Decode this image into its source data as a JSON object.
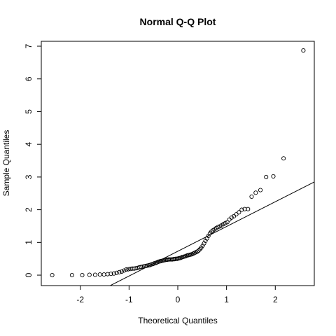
{
  "chart_data": {
    "type": "scatter",
    "title": "Normal Q-Q Plot",
    "x_label": "Theoretical Quantiles",
    "y_label": "Sample Quantiles",
    "x": [
      -2.576,
      -2.17,
      -1.96,
      -1.812,
      -1.695,
      -1.598,
      -1.514,
      -1.44,
      -1.372,
      -1.311,
      -1.254,
      -1.2,
      -1.15,
      -1.103,
      -1.058,
      -1.015,
      -0.974,
      -0.935,
      -0.896,
      -0.86,
      -0.824,
      -0.789,
      -0.755,
      -0.722,
      -0.69,
      -0.659,
      -0.628,
      -0.598,
      -0.568,
      -0.539,
      -0.51,
      -0.482,
      -0.454,
      -0.426,
      -0.399,
      -0.372,
      -0.345,
      -0.319,
      -0.292,
      -0.266,
      -0.24,
      -0.215,
      -0.189,
      -0.164,
      -0.138,
      -0.113,
      -0.088,
      -0.063,
      -0.038,
      -0.013,
      0.013,
      0.038,
      0.063,
      0.088,
      0.113,
      0.138,
      0.164,
      0.189,
      0.215,
      0.24,
      0.266,
      0.292,
      0.319,
      0.345,
      0.372,
      0.399,
      0.426,
      0.454,
      0.482,
      0.51,
      0.539,
      0.568,
      0.598,
      0.628,
      0.659,
      0.69,
      0.722,
      0.755,
      0.789,
      0.824,
      0.86,
      0.896,
      0.935,
      0.974,
      1.015,
      1.058,
      1.103,
      1.15,
      1.2,
      1.254,
      1.311,
      1.372,
      1.44,
      1.514,
      1.598,
      1.695,
      1.812,
      1.96,
      2.17,
      2.576
    ],
    "values": [
      0.0,
      0.0,
      0.0,
      0.01,
      0.01,
      0.02,
      0.02,
      0.03,
      0.04,
      0.05,
      0.07,
      0.09,
      0.11,
      0.14,
      0.17,
      0.18,
      0.19,
      0.2,
      0.2,
      0.21,
      0.22,
      0.24,
      0.25,
      0.26,
      0.27,
      0.28,
      0.29,
      0.3,
      0.31,
      0.33,
      0.34,
      0.36,
      0.37,
      0.39,
      0.41,
      0.42,
      0.43,
      0.44,
      0.45,
      0.46,
      0.47,
      0.47,
      0.48,
      0.48,
      0.48,
      0.48,
      0.49,
      0.49,
      0.5,
      0.5,
      0.51,
      0.52,
      0.53,
      0.55,
      0.56,
      0.57,
      0.58,
      0.6,
      0.61,
      0.62,
      0.63,
      0.64,
      0.66,
      0.68,
      0.7,
      0.72,
      0.75,
      0.79,
      0.84,
      0.9,
      0.97,
      1.05,
      1.12,
      1.2,
      1.28,
      1.33,
      1.37,
      1.4,
      1.44,
      1.47,
      1.49,
      1.52,
      1.56,
      1.59,
      1.62,
      1.7,
      1.76,
      1.8,
      1.86,
      1.92,
      2.0,
      2.02,
      2.02,
      2.4,
      2.52,
      2.6,
      3.0,
      3.02,
      3.57,
      6.87
    ],
    "color": "#000000",
    "reference_line": {
      "intercept": 0.73,
      "slope": 0.757
    },
    "xlim": [
      -2.8,
      2.8
    ],
    "ylim": [
      -0.32,
      7.15
    ],
    "xticks": [
      -2,
      -1,
      0,
      1,
      2
    ],
    "yticks": [
      0,
      1,
      2,
      3,
      4,
      5,
      6,
      7
    ]
  }
}
